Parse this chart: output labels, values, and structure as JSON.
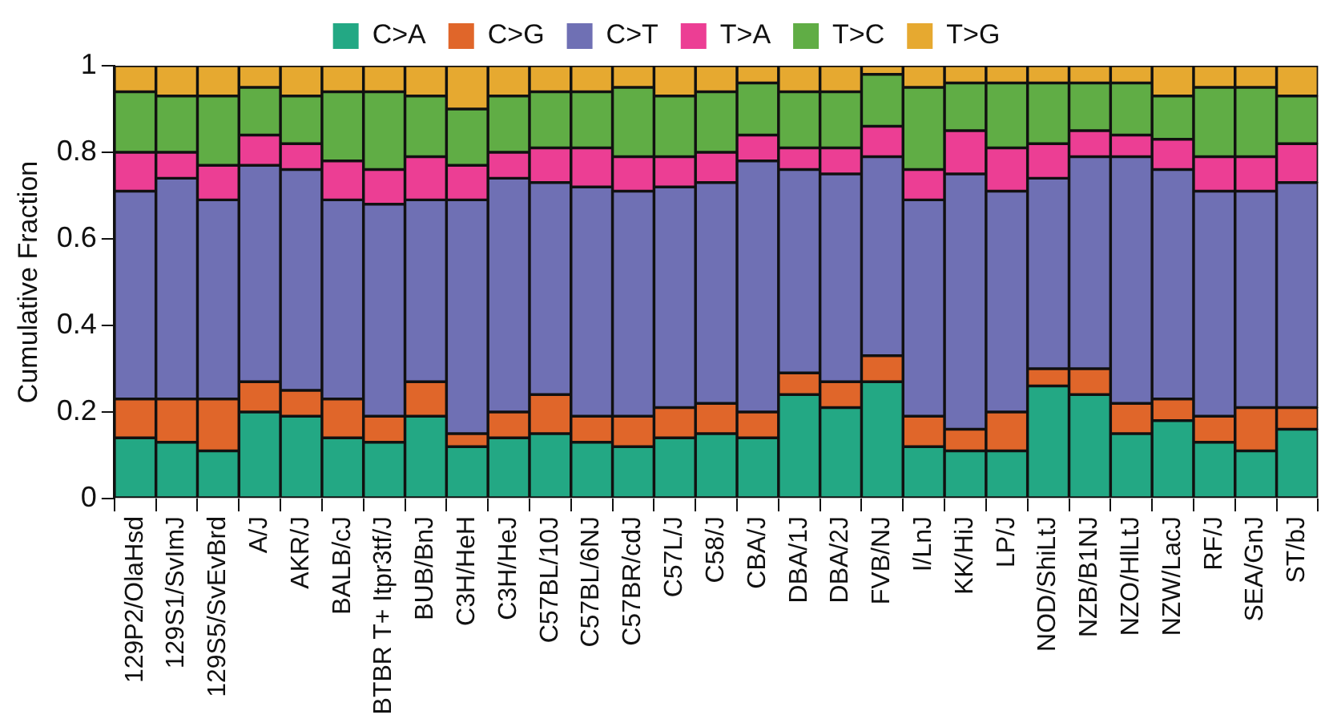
{
  "chart_data": {
    "type": "bar",
    "stacked": true,
    "ylabel": "Cumulative Fraction",
    "legend": "top",
    "grid": false,
    "categories": [
      "129P2/OlaHsd",
      "129S1/SvImJ",
      "129S5/SvEvBrd",
      "A/J",
      "AKR/J",
      "BALB/cJ",
      "BTBR T+ Itpr3tf/J",
      "BUB/BnJ",
      "C3H/HeH",
      "C3H/HeJ",
      "C57BL/10J",
      "C57BL/6NJ",
      "C57BR/cdJ",
      "C57L/J",
      "C58/J",
      "CBA/J",
      "DBA/1J",
      "DBA/2J",
      "FVB/NJ",
      "I/LnJ",
      "KK/HiJ",
      "LP/J",
      "NOD/ShiLtJ",
      "NZB/B1NJ",
      "NZO/HlLtJ",
      "NZW/LacJ",
      "RF/J",
      "SEA/GnJ",
      "ST/bJ"
    ],
    "ylim": [
      0,
      1
    ],
    "yticks": [
      0,
      0.2,
      0.4,
      0.6,
      0.8,
      1
    ],
    "series": [
      {
        "name": "C>A",
        "color": "#23a884",
        "values": [
          0.14,
          0.13,
          0.11,
          0.2,
          0.19,
          0.14,
          0.13,
          0.19,
          0.12,
          0.14,
          0.15,
          0.13,
          0.12,
          0.14,
          0.15,
          0.14,
          0.24,
          0.21,
          0.27,
          0.12,
          0.11,
          0.11,
          0.26,
          0.24,
          0.15,
          0.18,
          0.13,
          0.11,
          0.16
        ]
      },
      {
        "name": "C>G",
        "color": "#e0662a",
        "values": [
          0.09,
          0.1,
          0.12,
          0.07,
          0.06,
          0.09,
          0.06,
          0.08,
          0.03,
          0.06,
          0.09,
          0.06,
          0.07,
          0.07,
          0.07,
          0.06,
          0.05,
          0.06,
          0.06,
          0.07,
          0.05,
          0.09,
          0.04,
          0.06,
          0.07,
          0.05,
          0.06,
          0.1,
          0.05
        ]
      },
      {
        "name": "C>T",
        "color": "#6f70b4",
        "values": [
          0.48,
          0.51,
          0.46,
          0.5,
          0.51,
          0.46,
          0.49,
          0.42,
          0.54,
          0.54,
          0.49,
          0.53,
          0.52,
          0.51,
          0.51,
          0.58,
          0.47,
          0.48,
          0.46,
          0.5,
          0.59,
          0.51,
          0.44,
          0.49,
          0.57,
          0.53,
          0.52,
          0.5,
          0.52
        ]
      },
      {
        "name": "T>A",
        "color": "#ec3e94",
        "values": [
          0.09,
          0.06,
          0.08,
          0.07,
          0.06,
          0.09,
          0.08,
          0.1,
          0.08,
          0.06,
          0.08,
          0.09,
          0.08,
          0.07,
          0.07,
          0.06,
          0.05,
          0.06,
          0.07,
          0.07,
          0.1,
          0.1,
          0.08,
          0.06,
          0.05,
          0.07,
          0.08,
          0.08,
          0.09
        ]
      },
      {
        "name": "T>C",
        "color": "#60ad45",
        "values": [
          0.14,
          0.13,
          0.16,
          0.11,
          0.11,
          0.16,
          0.18,
          0.14,
          0.13,
          0.13,
          0.13,
          0.13,
          0.16,
          0.14,
          0.14,
          0.12,
          0.13,
          0.13,
          0.12,
          0.19,
          0.11,
          0.15,
          0.14,
          0.11,
          0.12,
          0.1,
          0.16,
          0.16,
          0.11
        ]
      },
      {
        "name": "T>G",
        "color": "#e6a930",
        "values": [
          0.06,
          0.07,
          0.07,
          0.05,
          0.07,
          0.06,
          0.06,
          0.07,
          0.1,
          0.07,
          0.06,
          0.06,
          0.05,
          0.07,
          0.06,
          0.04,
          0.06,
          0.06,
          0.02,
          0.05,
          0.04,
          0.04,
          0.04,
          0.04,
          0.04,
          0.07,
          0.05,
          0.05,
          0.07
        ]
      }
    ]
  }
}
